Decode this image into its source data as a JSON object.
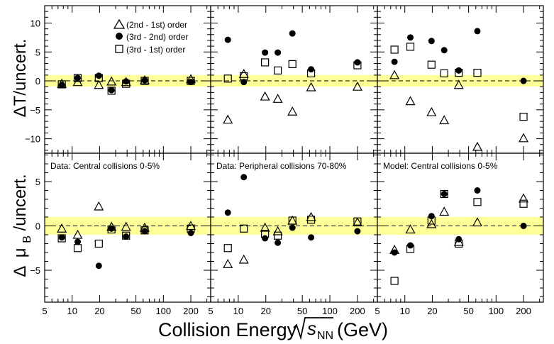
{
  "figure": {
    "xlabel_prefix": "Collision Energy",
    "xlabel_sqrt": "s",
    "xlabel_sub": "NN",
    "xlabel_unit": "(GeV)",
    "ylabel_top": "ΔT/uncert.",
    "ylabel_bottom_delta": "Δ",
    "ylabel_bottom_mu": "μ",
    "ylabel_bottom_sub": "B",
    "ylabel_bottom_tail": "/uncert.",
    "x_ticks": [
      "5",
      "10",
      "20",
      "50",
      "100",
      "200"
    ],
    "top_y_ticks": [
      "10",
      "5",
      "0",
      "−5",
      "−10"
    ],
    "bottom_y_ticks": [
      "5",
      "0",
      "−5"
    ],
    "legend": [
      {
        "marker": "triangle",
        "label": "(2nd - 1st) order"
      },
      {
        "marker": "circle",
        "label": "(3rd - 2nd) order"
      },
      {
        "marker": "square",
        "label": "(3rd - 1st) order"
      }
    ],
    "band_color": "#ffff99"
  },
  "chart_data": [
    {
      "type": "scatter",
      "panel": "top-left",
      "title": "",
      "xscale": "log",
      "xlim": [
        5,
        330
      ],
      "ylim": [
        -12.5,
        13
      ],
      "band": [
        -1,
        1
      ],
      "series": [
        {
          "name": "(2nd - 1st) order",
          "marker": "triangle",
          "points": [
            [
              7.7,
              -0.5
            ],
            [
              11.5,
              -0.2
            ],
            [
              19.6,
              -0.7
            ],
            [
              27,
              -0.1
            ],
            [
              39,
              -0.2
            ],
            [
              62.4,
              0.1
            ],
            [
              200,
              0.3
            ]
          ]
        },
        {
          "name": "(3rd - 2nd) order",
          "marker": "circle",
          "points": [
            [
              7.7,
              -0.7
            ],
            [
              11.5,
              0.5
            ],
            [
              19.6,
              0.9
            ],
            [
              27,
              -1.6
            ],
            [
              39,
              -0.1
            ],
            [
              62.4,
              0.1
            ],
            [
              200,
              -0.2
            ]
          ]
        },
        {
          "name": "(3rd - 1st) order",
          "marker": "square",
          "points": [
            [
              7.7,
              -0.6
            ],
            [
              11.5,
              0.5
            ],
            [
              19.6,
              0.5
            ],
            [
              27,
              -1.7
            ],
            [
              39,
              -0.5
            ],
            [
              62.4,
              0.0
            ],
            [
              200,
              0.0
            ]
          ]
        }
      ]
    },
    {
      "type": "scatter",
      "panel": "top-middle",
      "title": "",
      "xscale": "log",
      "xlim": [
        5,
        330
      ],
      "ylim": [
        -12.5,
        13
      ],
      "band": [
        -1,
        1
      ],
      "series": [
        {
          "name": "(2nd - 1st) order",
          "marker": "triangle",
          "points": [
            [
              7.7,
              -6.7
            ],
            [
              11.5,
              1.2
            ],
            [
              19.6,
              -2.7
            ],
            [
              27,
              -3.1
            ],
            [
              39,
              -5.3
            ],
            [
              62.4,
              -1.1
            ],
            [
              200,
              -1.0
            ]
          ]
        },
        {
          "name": "(3rd - 2nd) order",
          "marker": "circle",
          "points": [
            [
              7.7,
              7.1
            ],
            [
              11.5,
              -0.2
            ],
            [
              19.6,
              4.9
            ],
            [
              27,
              4.9
            ],
            [
              39,
              8.2
            ],
            [
              62.4,
              2.0
            ],
            [
              200,
              3.2
            ]
          ]
        },
        {
          "name": "(3rd - 1st) order",
          "marker": "square",
          "points": [
            [
              7.7,
              0.4
            ],
            [
              11.5,
              0.8
            ],
            [
              19.6,
              3.2
            ],
            [
              27,
              1.8
            ],
            [
              39,
              2.9
            ],
            [
              62.4,
              1.3
            ],
            [
              200,
              2.7
            ]
          ]
        }
      ]
    },
    {
      "type": "scatter",
      "panel": "top-right",
      "title": "",
      "xscale": "log",
      "xlim": [
        5,
        330
      ],
      "ylim": [
        -12.5,
        13
      ],
      "band": [
        -1,
        1
      ],
      "series": [
        {
          "name": "(2nd - 1st) order",
          "marker": "triangle",
          "points": [
            [
              7.7,
              1.0
            ],
            [
              11.5,
              -3.5
            ],
            [
              19.6,
              -5.4
            ],
            [
              27,
              -6.8
            ],
            [
              39,
              -0.7
            ],
            [
              62.4,
              -11.4
            ],
            [
              200,
              -9.9
            ]
          ]
        },
        {
          "name": "(3rd - 2nd) order",
          "marker": "circle",
          "points": [
            [
              7.7,
              3.3
            ],
            [
              11.5,
              7.5
            ],
            [
              19.6,
              6.9
            ],
            [
              27,
              5.3
            ],
            [
              39,
              1.8
            ],
            [
              62.4,
              8.6
            ],
            [
              200,
              0.0
            ]
          ]
        },
        {
          "name": "(3rd - 1st) order",
          "marker": "square",
          "points": [
            [
              7.7,
              5.4
            ],
            [
              11.5,
              5.9
            ],
            [
              19.6,
              2.8
            ],
            [
              27,
              1.3
            ],
            [
              39,
              1.4
            ],
            [
              62.4,
              1.4
            ],
            [
              200,
              -6.2
            ]
          ]
        }
      ]
    },
    {
      "type": "scatter",
      "panel": "bottom-left",
      "title": "Data: Central collisions 0-5%",
      "xscale": "log",
      "xlim": [
        5,
        330
      ],
      "ylim": [
        -8.6,
        8.2
      ],
      "band": [
        -1,
        1
      ],
      "series": [
        {
          "name": "(2nd - 1st) order",
          "marker": "triangle",
          "points": [
            [
              7.7,
              -0.3
            ],
            [
              11.5,
              -1.0
            ],
            [
              19.6,
              2.2
            ],
            [
              27,
              -0.1
            ],
            [
              39,
              -0.1
            ],
            [
              62.4,
              -0.2
            ],
            [
              200,
              0.0
            ]
          ]
        },
        {
          "name": "(3rd - 2nd) order",
          "marker": "circle",
          "points": [
            [
              7.7,
              -1.3
            ],
            [
              11.5,
              -1.8
            ],
            [
              19.6,
              -4.5
            ],
            [
              27,
              -0.3
            ],
            [
              39,
              -1.2
            ],
            [
              62.4,
              -0.6
            ],
            [
              200,
              -0.8
            ]
          ]
        },
        {
          "name": "(3rd - 1st) order",
          "marker": "square",
          "points": [
            [
              7.7,
              -1.4
            ],
            [
              11.5,
              -2.5
            ],
            [
              19.6,
              -2.0
            ],
            [
              27,
              -0.4
            ],
            [
              39,
              -1.1
            ],
            [
              62.4,
              -0.5
            ],
            [
              200,
              -0.3
            ]
          ]
        }
      ]
    },
    {
      "type": "scatter",
      "panel": "bottom-middle",
      "title": "Data: Peripheral collisions 70-80%",
      "xscale": "log",
      "xlim": [
        5,
        330
      ],
      "ylim": [
        -8.6,
        8.2
      ],
      "band": [
        -1,
        1
      ],
      "series": [
        {
          "name": "(2nd - 1st) order",
          "marker": "triangle",
          "points": [
            [
              7.7,
              -4.3
            ],
            [
              11.5,
              -3.8
            ],
            [
              19.6,
              -0.2
            ],
            [
              27,
              -0.6
            ],
            [
              39,
              0.6
            ],
            [
              62.4,
              1.0
            ],
            [
              200,
              0.4
            ]
          ]
        },
        {
          "name": "(3rd - 2nd) order",
          "marker": "circle",
          "points": [
            [
              7.7,
              1.5
            ],
            [
              11.5,
              5.5
            ],
            [
              19.6,
              -1.4
            ],
            [
              27,
              -1.9
            ],
            [
              39,
              -0.2
            ],
            [
              62.4,
              -1.3
            ],
            [
              200,
              -0.6
            ]
          ]
        },
        {
          "name": "(3rd - 1st) order",
          "marker": "square",
          "points": [
            [
              7.7,
              -2.5
            ],
            [
              11.5,
              -0.3
            ],
            [
              19.6,
              -0.9
            ],
            [
              27,
              -1.1
            ],
            [
              39,
              0.6
            ],
            [
              62.4,
              0.7
            ],
            [
              200,
              0.5
            ]
          ]
        }
      ]
    },
    {
      "type": "scatter",
      "panel": "bottom-right",
      "title": "Model: Central collisions 0-5%",
      "xscale": "log",
      "xlim": [
        5,
        330
      ],
      "ylim": [
        -8.6,
        8.2
      ],
      "band": [
        -1,
        1
      ],
      "series": [
        {
          "name": "(2nd - 1st) order",
          "marker": "triangle",
          "points": [
            [
              7.7,
              -2.7
            ],
            [
              11.5,
              -0.4
            ],
            [
              19.6,
              0.2
            ],
            [
              27,
              1.6
            ],
            [
              39,
              -1.8
            ],
            [
              62.4,
              0.4
            ],
            [
              200,
              3.1
            ]
          ]
        },
        {
          "name": "(3rd - 2nd) order",
          "marker": "circle",
          "points": [
            [
              7.7,
              -3.0
            ],
            [
              11.5,
              -2.2
            ],
            [
              19.6,
              1.1
            ],
            [
              27,
              3.6
            ],
            [
              39,
              -1.5
            ],
            [
              62.4,
              4.0
            ],
            [
              200,
              0.0
            ]
          ]
        },
        {
          "name": "(3rd - 1st) order",
          "marker": "square",
          "points": [
            [
              7.7,
              -6.2
            ],
            [
              11.5,
              -2.6
            ],
            [
              19.6,
              0.6
            ],
            [
              27,
              3.6
            ],
            [
              39,
              -2.0
            ],
            [
              62.4,
              2.7
            ],
            [
              200,
              2.5
            ]
          ]
        }
      ]
    }
  ]
}
